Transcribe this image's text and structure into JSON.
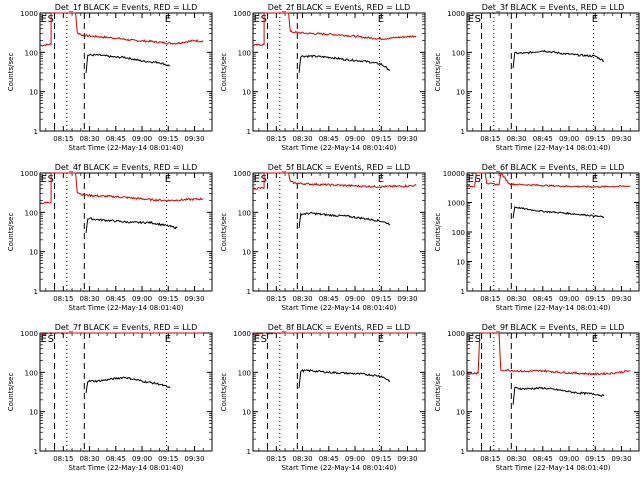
{
  "colors": {
    "events": "#000000",
    "lld": "#d40000",
    "axes": "#000000",
    "background": "#ffffff"
  },
  "common": {
    "ylabel": "Counts/sec",
    "xlabel": "Start Time (22-May-14 08:01:40)",
    "x_ticks": [
      "08:15",
      "08:30",
      "08:45",
      "09:00",
      "09:15",
      "09:30"
    ],
    "y_ticks": [
      "1",
      "10",
      "100",
      "1000"
    ],
    "y_ticks_wide": [
      "1",
      "10",
      "100",
      "1000",
      "10000"
    ]
  },
  "chart_data": [
    {
      "type": "line",
      "title": "Det_1f BLACK = Events, RED = LLD",
      "xlabel": "Start Time (22-May-14 08:01:40)",
      "ylabel": "Counts/sec",
      "ylim": [
        1,
        1000
      ],
      "ylog": true,
      "annotations": [
        {
          "text": "E",
          "x": "08:02"
        },
        {
          "text": "S",
          "x": "08:06"
        },
        {
          "text": "E",
          "x": "09:13"
        }
      ],
      "dashed_x": [
        "08:10",
        "08:27"
      ],
      "dotted_x": [
        "08:17",
        "09:14"
      ],
      "series": [
        {
          "name": "LLD",
          "color": "#d40000",
          "x": [
            "08:02",
            "08:08",
            "08:08",
            "08:22",
            "08:23",
            "08:26",
            "08:35",
            "08:45",
            "08:55",
            "09:05",
            "09:15",
            "09:20",
            "09:30",
            "09:35"
          ],
          "y": [
            150,
            160,
            1000,
            1000,
            320,
            270,
            250,
            230,
            200,
            190,
            170,
            170,
            200,
            190
          ]
        },
        {
          "name": "Events",
          "color": "#000000",
          "x": [
            "08:28",
            "08:29",
            "08:35",
            "08:45",
            "08:50",
            "09:00",
            "09:10",
            "09:16"
          ],
          "y": [
            30,
            85,
            85,
            75,
            75,
            60,
            55,
            45
          ]
        }
      ]
    },
    {
      "type": "line",
      "title": "Det_2f BLACK = Events, RED = LLD",
      "xlabel": "Start Time (22-May-14 08:01:40)",
      "ylabel": "Counts/sec",
      "ylim": [
        1,
        1000
      ],
      "ylog": true,
      "annotations": [
        {
          "text": "E",
          "x": "08:02"
        },
        {
          "text": "S",
          "x": "08:06"
        },
        {
          "text": "E",
          "x": "09:13"
        }
      ],
      "dashed_x": [
        "08:10",
        "08:27"
      ],
      "dotted_x": [
        "08:17",
        "09:14"
      ],
      "series": [
        {
          "name": "LLD",
          "color": "#d40000",
          "x": [
            "08:02",
            "08:08",
            "08:08",
            "08:22",
            "08:23",
            "08:26",
            "08:35",
            "08:45",
            "08:55",
            "09:05",
            "09:15",
            "09:25",
            "09:35"
          ],
          "y": [
            150,
            160,
            1000,
            1000,
            340,
            320,
            300,
            290,
            270,
            240,
            220,
            240,
            260
          ]
        },
        {
          "name": "Events",
          "color": "#000000",
          "x": [
            "08:28",
            "08:29",
            "08:35",
            "08:45",
            "08:55",
            "09:05",
            "09:15",
            "09:20"
          ],
          "y": [
            30,
            80,
            80,
            75,
            65,
            60,
            50,
            35
          ]
        }
      ]
    },
    {
      "type": "line",
      "title": "Det_3f BLACK = Events, RED = LLD",
      "xlabel": "Start Time (22-May-14 08:01:40)",
      "ylabel": "Counts/sec",
      "ylim": [
        1,
        1000
      ],
      "ylog": true,
      "annotations": [
        {
          "text": "E",
          "x": "08:02"
        },
        {
          "text": "S",
          "x": "08:06"
        },
        {
          "text": "E",
          "x": "09:13"
        }
      ],
      "dashed_x": [
        "08:10",
        "08:27"
      ],
      "dotted_x": [
        "08:17",
        "09:14"
      ],
      "series": [
        {
          "name": "Events",
          "color": "#000000",
          "x": [
            "08:28",
            "08:29",
            "08:35",
            "08:45",
            "08:55",
            "09:05",
            "09:15",
            "09:20"
          ],
          "y": [
            40,
            95,
            95,
            110,
            95,
            85,
            80,
            60
          ]
        }
      ]
    },
    {
      "type": "line",
      "title": "Det_4f BLACK = Events, RED = LLD",
      "xlabel": "Start Time (22-May-14 08:01:40)",
      "ylabel": "Counts/sec",
      "ylim": [
        1,
        1000
      ],
      "ylog": true,
      "annotations": [
        {
          "text": "E",
          "x": "08:02"
        },
        {
          "text": "S",
          "x": "08:06"
        },
        {
          "text": "E",
          "x": "09:13"
        }
      ],
      "dashed_x": [
        "08:10",
        "08:27"
      ],
      "dotted_x": [
        "08:17",
        "09:14"
      ],
      "series": [
        {
          "name": "LLD",
          "color": "#d40000",
          "x": [
            "08:02",
            "08:08",
            "08:08",
            "08:22",
            "08:23",
            "08:26",
            "08:35",
            "08:45",
            "08:55",
            "09:05",
            "09:15",
            "09:25",
            "09:35"
          ],
          "y": [
            170,
            180,
            1000,
            1000,
            330,
            280,
            260,
            250,
            230,
            210,
            200,
            210,
            220
          ]
        },
        {
          "name": "Events",
          "color": "#000000",
          "x": [
            "08:28",
            "08:29",
            "08:35",
            "08:45",
            "08:55",
            "09:05",
            "09:15",
            "09:20"
          ],
          "y": [
            30,
            70,
            65,
            60,
            55,
            55,
            45,
            40
          ]
        }
      ]
    },
    {
      "type": "line",
      "title": "Det_5f BLACK = Events, RED = LLD",
      "xlabel": "Start Time (22-May-14 08:01:40)",
      "ylabel": "Counts/sec",
      "ylim": [
        1,
        1000
      ],
      "ylog": true,
      "annotations": [
        {
          "text": "E",
          "x": "08:02"
        },
        {
          "text": "S",
          "x": "08:06"
        },
        {
          "text": "E",
          "x": "09:13"
        }
      ],
      "dashed_x": [
        "08:10",
        "08:27"
      ],
      "dotted_x": [
        "08:17",
        "09:14"
      ],
      "series": [
        {
          "name": "LLD",
          "color": "#d40000",
          "x": [
            "08:02",
            "08:08",
            "08:08",
            "08:22",
            "08:23",
            "08:26",
            "08:35",
            "08:45",
            "08:55",
            "09:05",
            "09:15",
            "09:25",
            "09:35"
          ],
          "y": [
            400,
            420,
            1000,
            1000,
            600,
            550,
            520,
            500,
            480,
            460,
            450,
            460,
            480
          ]
        },
        {
          "name": "Events",
          "color": "#000000",
          "x": [
            "08:28",
            "08:29",
            "08:35",
            "08:45",
            "08:55",
            "09:05",
            "09:15",
            "09:20"
          ],
          "y": [
            40,
            90,
            95,
            85,
            80,
            70,
            60,
            50
          ]
        }
      ]
    },
    {
      "type": "line",
      "title": "Det_6f BLACK = Events, RED = LLD",
      "xlabel": "Start Time (22-May-14 08:01:40)",
      "ylabel": "Counts/sec",
      "ylim": [
        1,
        10000
      ],
      "ylog": true,
      "annotations": [
        {
          "text": "E",
          "x": "08:02"
        },
        {
          "text": "S",
          "x": "08:06"
        },
        {
          "text": "E",
          "x": "09:13"
        }
      ],
      "dashed_x": [
        "08:10",
        "08:27"
      ],
      "dotted_x": [
        "08:17",
        "09:14"
      ],
      "series": [
        {
          "name": "LLD",
          "color": "#d40000",
          "x": [
            "08:02",
            "08:06",
            "08:07",
            "08:12",
            "08:13",
            "08:20",
            "08:21",
            "08:26",
            "08:35",
            "08:45",
            "08:55",
            "09:05",
            "09:15",
            "09:25",
            "09:35"
          ],
          "y": [
            3500,
            3600,
            10000,
            10000,
            4500,
            4000,
            10000,
            4200,
            4000,
            3800,
            3600,
            3500,
            3400,
            3500,
            3600
          ]
        },
        {
          "name": "Events",
          "color": "#000000",
          "x": [
            "08:28",
            "08:29",
            "08:35",
            "08:45",
            "08:55",
            "09:05",
            "09:15",
            "09:20"
          ],
          "y": [
            300,
            700,
            600,
            500,
            450,
            400,
            350,
            320
          ]
        }
      ]
    },
    {
      "type": "line",
      "title": "Det_7f BLACK = Events, RED = LLD",
      "xlabel": "Start Time (22-May-14 08:01:40)",
      "ylabel": "Counts/sec",
      "ylim": [
        1,
        1000
      ],
      "ylog": true,
      "annotations": [
        {
          "text": "E",
          "x": "08:02"
        },
        {
          "text": "S",
          "x": "08:06"
        },
        {
          "text": "E",
          "x": "09:13"
        }
      ],
      "dashed_x": [
        "08:10",
        "08:27"
      ],
      "dotted_x": [
        "08:17",
        "09:14"
      ],
      "series": [
        {
          "name": "LLD",
          "color": "#d40000",
          "x": [
            "08:02",
            "08:15",
            "08:30",
            "08:45",
            "09:00",
            "09:15",
            "09:35"
          ],
          "y": [
            950,
            1000,
            1000,
            1000,
            1000,
            1000,
            1000
          ]
        },
        {
          "name": "Events",
          "color": "#000000",
          "x": [
            "08:28",
            "08:29",
            "08:35",
            "08:45",
            "08:50",
            "09:00",
            "09:10",
            "09:16"
          ],
          "y": [
            30,
            60,
            60,
            70,
            75,
            60,
            50,
            40
          ]
        }
      ]
    },
    {
      "type": "line",
      "title": "Det_8f BLACK = Events, RED = LLD",
      "xlabel": "Start Time (22-May-14 08:01:40)",
      "ylabel": "Counts/sec",
      "ylim": [
        1,
        1000
      ],
      "ylog": true,
      "annotations": [
        {
          "text": "E",
          "x": "08:02"
        },
        {
          "text": "S",
          "x": "08:06"
        },
        {
          "text": "E",
          "x": "09:13"
        }
      ],
      "dashed_x": [
        "08:10",
        "08:27"
      ],
      "dotted_x": [
        "08:17",
        "09:14"
      ],
      "series": [
        {
          "name": "LLD",
          "color": "#d40000",
          "x": [
            "08:02",
            "08:15",
            "08:30",
            "08:45",
            "09:00",
            "09:15",
            "09:35"
          ],
          "y": [
            950,
            1000,
            1000,
            1000,
            1000,
            1000,
            1000
          ]
        },
        {
          "name": "Events",
          "color": "#000000",
          "x": [
            "08:28",
            "08:29",
            "08:35",
            "08:45",
            "08:55",
            "09:05",
            "09:15",
            "09:20"
          ],
          "y": [
            40,
            110,
            110,
            100,
            95,
            90,
            80,
            60
          ]
        }
      ]
    },
    {
      "type": "line",
      "title": "Det_9f BLACK = Events, RED = LLD",
      "xlabel": "Start Time (22-May-14 08:01:40)",
      "ylabel": "Counts/sec",
      "ylim": [
        1,
        1000
      ],
      "ylog": true,
      "annotations": [
        {
          "text": "E",
          "x": "08:02"
        },
        {
          "text": "S",
          "x": "08:06"
        },
        {
          "text": "E",
          "x": "09:13"
        }
      ],
      "dashed_x": [
        "08:10",
        "08:27"
      ],
      "dotted_x": [
        "08:17",
        "09:14"
      ],
      "series": [
        {
          "name": "LLD",
          "color": "#d40000",
          "x": [
            "08:02",
            "08:08",
            "08:09",
            "08:20",
            "08:21",
            "08:24",
            "08:35",
            "08:45",
            "08:55",
            "09:05",
            "09:15",
            "09:25",
            "09:35"
          ],
          "y": [
            90,
            95,
            1000,
            1000,
            110,
            115,
            105,
            110,
            100,
            95,
            90,
            95,
            110
          ]
        },
        {
          "name": "Events",
          "color": "#000000",
          "x": [
            "08:28",
            "08:29",
            "08:35",
            "08:45",
            "08:55",
            "09:05",
            "09:15",
            "09:20"
          ],
          "y": [
            15,
            40,
            38,
            40,
            35,
            30,
            28,
            25
          ]
        }
      ]
    }
  ]
}
